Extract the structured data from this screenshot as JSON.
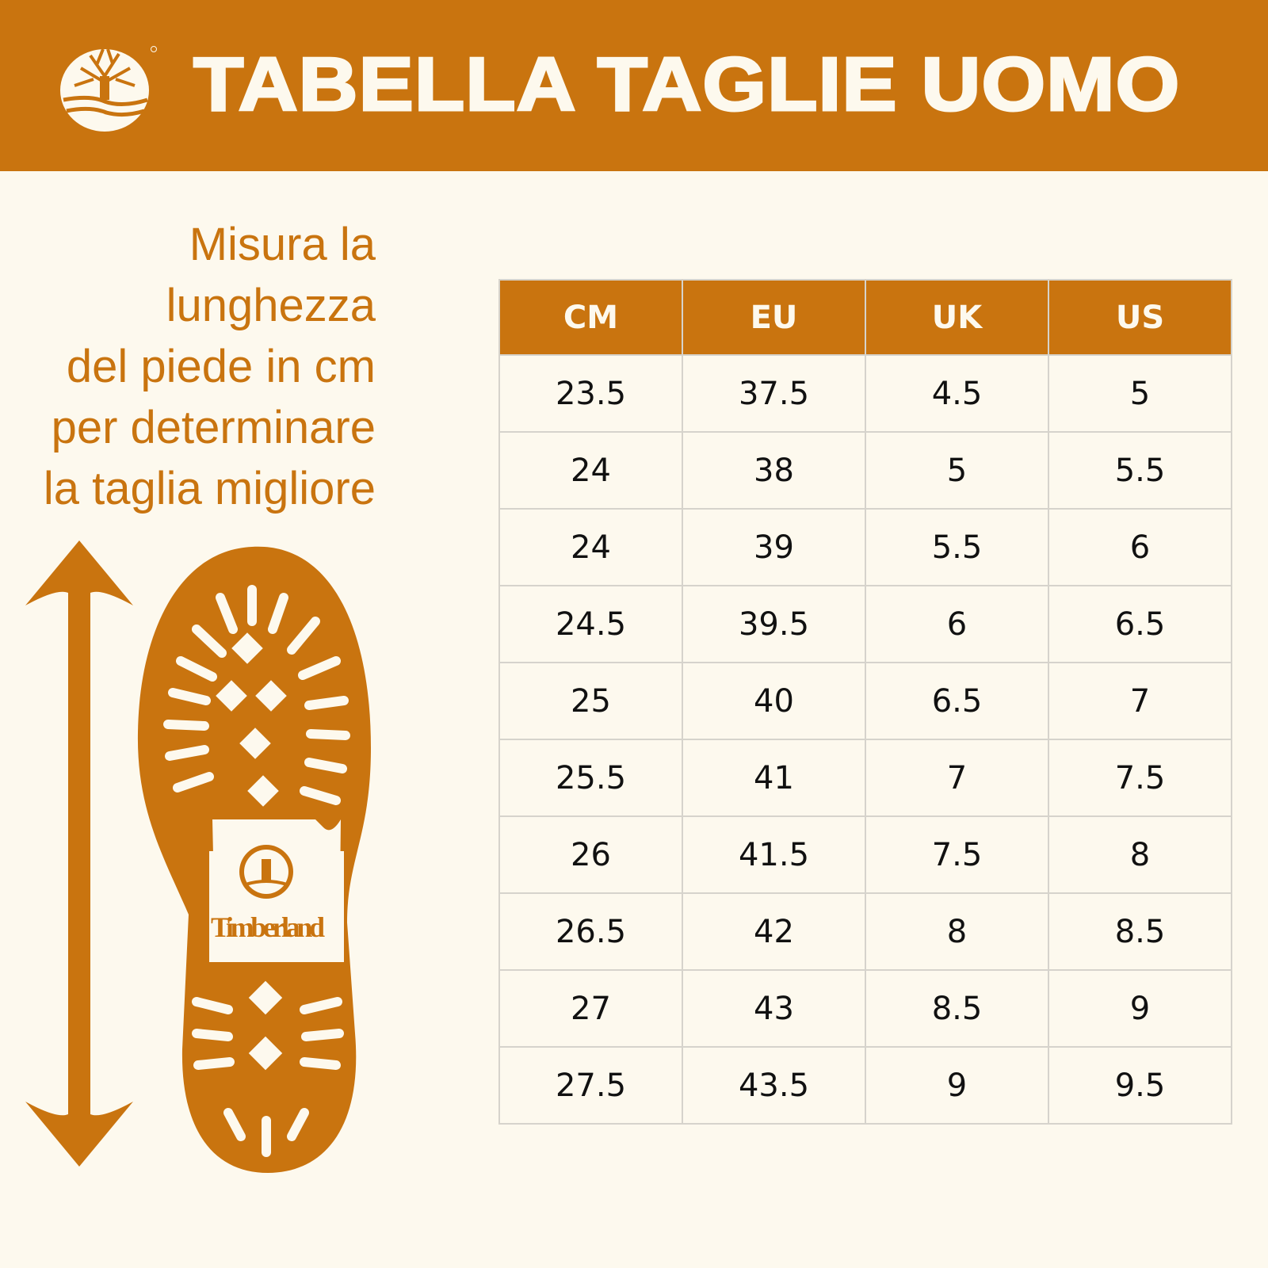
{
  "header": {
    "title": "TABELLA TAGLIE UOMO",
    "logo": "Timberland tree logo",
    "background_color": "#c9740f"
  },
  "instructions": {
    "lines": [
      "Misura la",
      "lunghezza",
      "del piede in cm",
      "per determinare",
      "la taglia migliore"
    ]
  },
  "illustration": {
    "arrow": "vertical-double-arrow-icon",
    "sole": "boot-sole-illustration",
    "sole_brand": "Timberland"
  },
  "table": {
    "headers": [
      "CM",
      "EU",
      "UK",
      "US"
    ],
    "rows": [
      [
        "23.5",
        "37.5",
        "4.5",
        "5"
      ],
      [
        "24",
        "38",
        "5",
        "5.5"
      ],
      [
        "24",
        "39",
        "5.5",
        "6"
      ],
      [
        "24.5",
        "39.5",
        "6",
        "6.5"
      ],
      [
        "25",
        "40",
        "6.5",
        "7"
      ],
      [
        "25.5",
        "41",
        "7",
        "7.5"
      ],
      [
        "26",
        "41.5",
        "7.5",
        "8"
      ],
      [
        "26.5",
        "42",
        "8",
        "8.5"
      ],
      [
        "27",
        "43",
        "8.5",
        "9"
      ],
      [
        "27.5",
        "43.5",
        "9",
        "9.5"
      ]
    ]
  },
  "colors": {
    "accent": "#c9740f",
    "background": "#fdf9ee",
    "text": "#111111"
  }
}
